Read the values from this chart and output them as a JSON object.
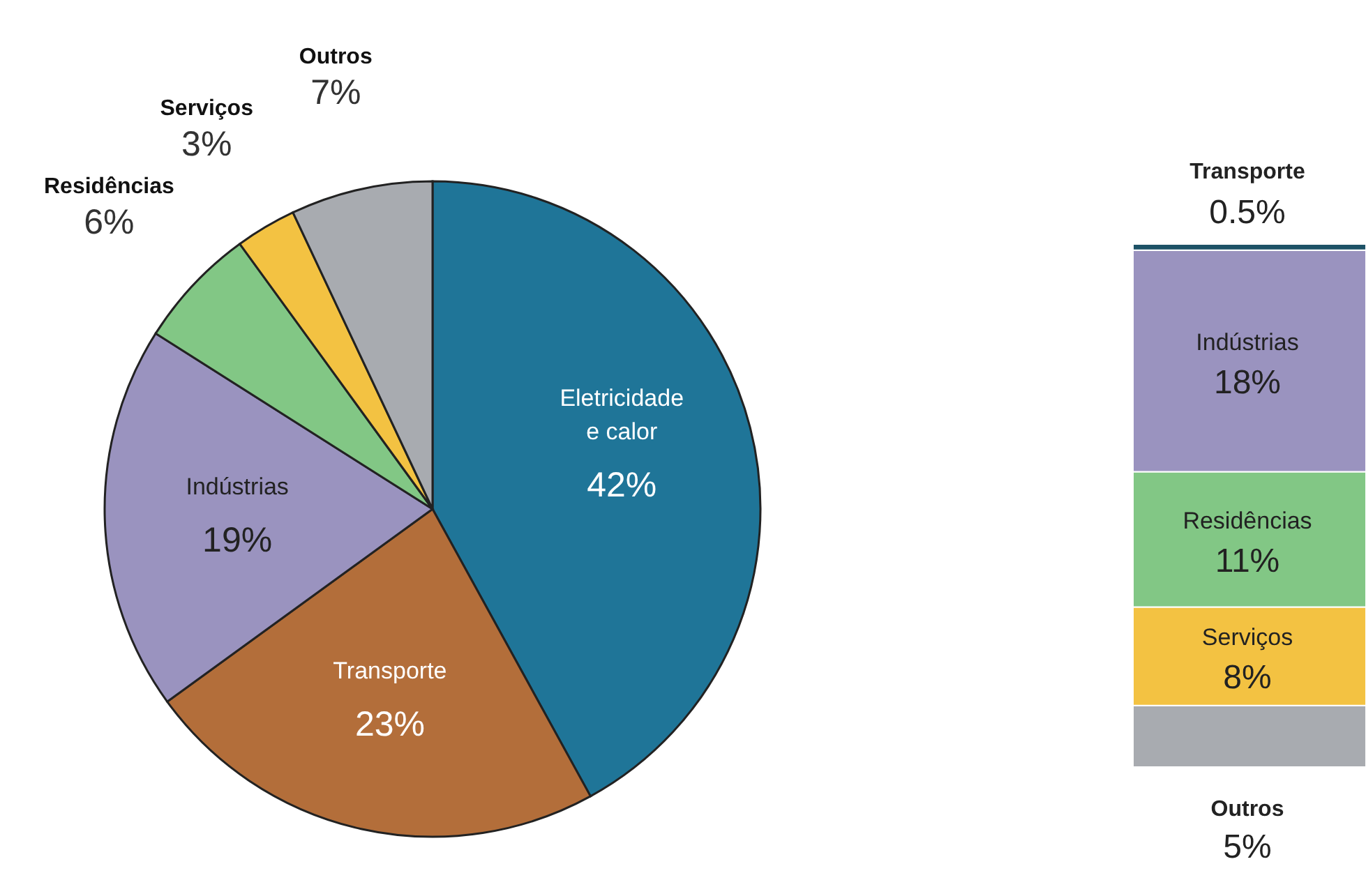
{
  "chart_data": [
    {
      "type": "pie",
      "categories": [
        "Eletricidade e calor",
        "Transporte",
        "Indústrias",
        "Residências",
        "Serviços",
        "Outros"
      ],
      "values": [
        42,
        23,
        19,
        6,
        3,
        7
      ],
      "colors": [
        "#1f7598",
        "#b36e3a",
        "#9a93bf",
        "#82c785",
        "#f3c242",
        "#a8abb0"
      ],
      "value_labels": [
        "42%",
        "23%",
        "19%",
        "6%",
        "3%",
        "7%"
      ]
    },
    {
      "type": "bar",
      "stacked": true,
      "categories": [
        null
      ],
      "series": [
        {
          "name": "Outros",
          "color": "#a8abb0",
          "values": [
            5
          ],
          "value_labels": [
            "5%"
          ]
        },
        {
          "name": "Serviços",
          "color": "#f3c242",
          "values": [
            8
          ],
          "value_labels": [
            "8%"
          ]
        },
        {
          "name": "Residências",
          "color": "#82c785",
          "values": [
            11
          ],
          "value_labels": [
            "11%"
          ]
        },
        {
          "name": "Indústrias",
          "color": "#9a93bf",
          "values": [
            18
          ],
          "value_labels": [
            "18%"
          ]
        },
        {
          "name": "Transporte",
          "color": "#1d5266",
          "values": [
            0.5
          ],
          "value_labels": [
            "0.5%"
          ]
        }
      ]
    }
  ]
}
